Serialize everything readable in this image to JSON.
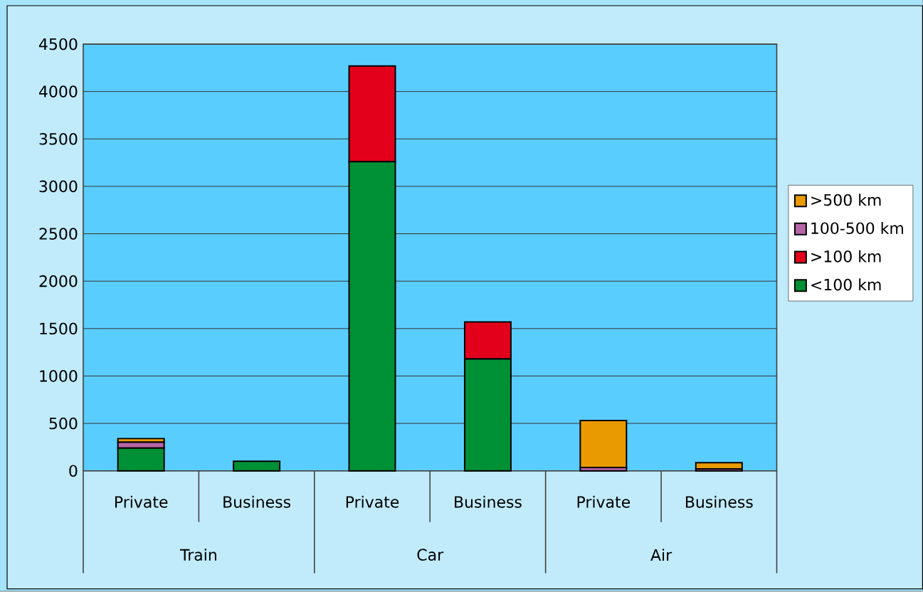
{
  "chart_data": {
    "type": "bar",
    "stacked": true,
    "categories": [
      "Private",
      "Business",
      "Private",
      "Business",
      "Private",
      "Business"
    ],
    "annotations": [
      "Train",
      "Car",
      "Air"
    ],
    "series": [
      {
        "name": "<100 km",
        "color": "#009036",
        "values": [
          240,
          100,
          3260,
          1180,
          0,
          0
        ]
      },
      {
        "name": ">100 km",
        "color": "#e3001b",
        "values": [
          0,
          null,
          1010,
          390,
          0,
          0
        ]
      },
      {
        "name": "100-500 km",
        "color": "#b565a7",
        "values": [
          62,
          0,
          0,
          0,
          35,
          20
        ]
      },
      {
        "name": ">500 km",
        "color": "#e89a00",
        "values": [
          38,
          0,
          0,
          0,
          495,
          65
        ]
      }
    ],
    "ylim": [
      0,
      4500
    ],
    "yticks": [
      0,
      500,
      1000,
      1500,
      2000,
      2500,
      3000,
      3500,
      4000,
      4500
    ],
    "grid": "y",
    "legend": "right"
  }
}
